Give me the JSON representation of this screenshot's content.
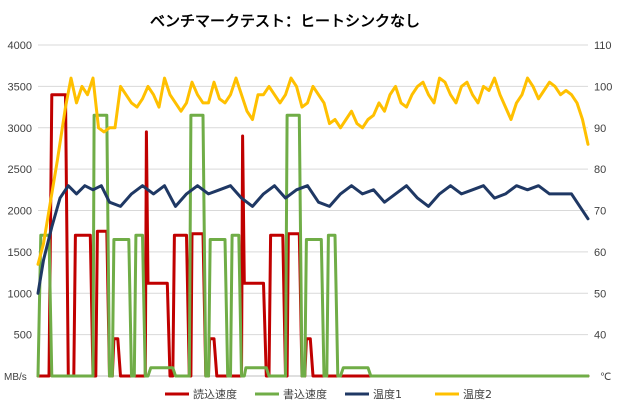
{
  "chart_data": {
    "type": "line",
    "title": "ベンチマークテスト：ヒートシンクなし",
    "y_left": {
      "unit": "MB/s",
      "min": 0,
      "max": 4000,
      "ticks": [
        "4000",
        "3500",
        "3000",
        "2500",
        "2000",
        "1500",
        "1000",
        "500"
      ]
    },
    "y_right": {
      "unit": "℃",
      "min": 30,
      "max": 110,
      "ticks": [
        "110",
        "100",
        "90",
        "80",
        "70",
        "60",
        "50",
        "40"
      ]
    },
    "grid": true,
    "legend_position": "bottom",
    "colors": {
      "read": "#c00000",
      "write": "#70ad47",
      "temp1": "#1f3864",
      "temp2": "#ffc000"
    },
    "series": [
      {
        "name": "読込速度",
        "axis": "left",
        "color": "#c00000",
        "step": true,
        "points": [
          [
            0,
            0
          ],
          [
            0.02,
            0
          ],
          [
            0.025,
            3400
          ],
          [
            0.05,
            3400
          ],
          [
            0.055,
            0
          ],
          [
            0.065,
            0
          ],
          [
            0.068,
            1700
          ],
          [
            0.095,
            1700
          ],
          [
            0.1,
            0
          ],
          [
            0.105,
            0
          ],
          [
            0.108,
            1750
          ],
          [
            0.125,
            1750
          ],
          [
            0.13,
            0
          ],
          [
            0.135,
            0
          ],
          [
            0.138,
            450
          ],
          [
            0.145,
            450
          ],
          [
            0.15,
            0
          ],
          [
            0.195,
            0
          ],
          [
            0.197,
            2950
          ],
          [
            0.2,
            1120
          ],
          [
            0.235,
            1120
          ],
          [
            0.24,
            0
          ],
          [
            0.245,
            0
          ],
          [
            0.248,
            1700
          ],
          [
            0.27,
            1700
          ],
          [
            0.275,
            0
          ],
          [
            0.278,
            0
          ],
          [
            0.28,
            1720
          ],
          [
            0.3,
            1720
          ],
          [
            0.305,
            0
          ],
          [
            0.31,
            0
          ],
          [
            0.312,
            450
          ],
          [
            0.32,
            450
          ],
          [
            0.325,
            0
          ],
          [
            0.37,
            0
          ],
          [
            0.372,
            2900
          ],
          [
            0.375,
            1120
          ],
          [
            0.41,
            1120
          ],
          [
            0.415,
            0
          ],
          [
            0.42,
            0
          ],
          [
            0.423,
            1700
          ],
          [
            0.445,
            1700
          ],
          [
            0.45,
            0
          ],
          [
            0.453,
            0
          ],
          [
            0.455,
            1720
          ],
          [
            0.475,
            1720
          ],
          [
            0.48,
            0
          ],
          [
            0.485,
            0
          ],
          [
            0.488,
            450
          ],
          [
            0.495,
            450
          ],
          [
            0.5,
            0
          ],
          [
            0.545,
            0
          ],
          [
            0.55,
            0
          ],
          [
            0.6,
            0
          ],
          [
            0.62,
            0
          ],
          [
            0.64,
            0
          ],
          [
            0.7,
            0
          ],
          [
            0.72,
            0
          ],
          [
            0.75,
            0
          ],
          [
            0.8,
            0
          ],
          [
            0.85,
            0
          ],
          [
            0.9,
            0
          ],
          [
            0.95,
            0
          ],
          [
            1,
            0
          ]
        ]
      },
      {
        "name": "書込速度",
        "axis": "left",
        "color": "#70ad47",
        "step": true,
        "points": [
          [
            0,
            0
          ],
          [
            0.005,
            1700
          ],
          [
            0.02,
            1700
          ],
          [
            0.025,
            0
          ],
          [
            0.1,
            0
          ],
          [
            0.102,
            3150
          ],
          [
            0.125,
            3150
          ],
          [
            0.13,
            0
          ],
          [
            0.135,
            0
          ],
          [
            0.138,
            1650
          ],
          [
            0.165,
            1650
          ],
          [
            0.17,
            0
          ],
          [
            0.175,
            0
          ],
          [
            0.178,
            1700
          ],
          [
            0.19,
            1700
          ],
          [
            0.195,
            0
          ],
          [
            0.2,
            0
          ],
          [
            0.205,
            100
          ],
          [
            0.245,
            100
          ],
          [
            0.25,
            0
          ],
          [
            0.275,
            0
          ],
          [
            0.278,
            3150
          ],
          [
            0.3,
            3150
          ],
          [
            0.305,
            0
          ],
          [
            0.31,
            0
          ],
          [
            0.313,
            1650
          ],
          [
            0.34,
            1650
          ],
          [
            0.345,
            0
          ],
          [
            0.35,
            0
          ],
          [
            0.353,
            1700
          ],
          [
            0.365,
            1700
          ],
          [
            0.37,
            0
          ],
          [
            0.375,
            0
          ],
          [
            0.378,
            100
          ],
          [
            0.415,
            100
          ],
          [
            0.42,
            0
          ],
          [
            0.45,
            0
          ],
          [
            0.453,
            3150
          ],
          [
            0.475,
            3150
          ],
          [
            0.48,
            0
          ],
          [
            0.485,
            0
          ],
          [
            0.488,
            1650
          ],
          [
            0.515,
            1650
          ],
          [
            0.52,
            0
          ],
          [
            0.525,
            0
          ],
          [
            0.528,
            1700
          ],
          [
            0.54,
            1700
          ],
          [
            0.545,
            0
          ],
          [
            0.55,
            0
          ],
          [
            0.555,
            100
          ],
          [
            0.6,
            100
          ],
          [
            0.605,
            0
          ],
          [
            0.7,
            0
          ],
          [
            0.75,
            0
          ],
          [
            0.8,
            0
          ],
          [
            0.85,
            0
          ],
          [
            0.9,
            0
          ],
          [
            0.95,
            0
          ],
          [
            1,
            0
          ]
        ]
      },
      {
        "name": "温度1",
        "axis": "right",
        "color": "#1f3864",
        "step": false,
        "points": [
          [
            0,
            50
          ],
          [
            0.01,
            58
          ],
          [
            0.025,
            66
          ],
          [
            0.04,
            73
          ],
          [
            0.055,
            76
          ],
          [
            0.07,
            74
          ],
          [
            0.085,
            76
          ],
          [
            0.1,
            75
          ],
          [
            0.115,
            76
          ],
          [
            0.13,
            72
          ],
          [
            0.15,
            71
          ],
          [
            0.17,
            74
          ],
          [
            0.19,
            76
          ],
          [
            0.21,
            74
          ],
          [
            0.23,
            76
          ],
          [
            0.25,
            71
          ],
          [
            0.27,
            74
          ],
          [
            0.29,
            76
          ],
          [
            0.31,
            74
          ],
          [
            0.33,
            75
          ],
          [
            0.35,
            76
          ],
          [
            0.37,
            73
          ],
          [
            0.39,
            71
          ],
          [
            0.41,
            74
          ],
          [
            0.43,
            76
          ],
          [
            0.45,
            73
          ],
          [
            0.47,
            75
          ],
          [
            0.49,
            76
          ],
          [
            0.51,
            72
          ],
          [
            0.53,
            71
          ],
          [
            0.55,
            74
          ],
          [
            0.57,
            76
          ],
          [
            0.59,
            74
          ],
          [
            0.61,
            75
          ],
          [
            0.63,
            72
          ],
          [
            0.65,
            74
          ],
          [
            0.67,
            76
          ],
          [
            0.69,
            73
          ],
          [
            0.71,
            71
          ],
          [
            0.73,
            74
          ],
          [
            0.75,
            76
          ],
          [
            0.77,
            74
          ],
          [
            0.79,
            75
          ],
          [
            0.81,
            76
          ],
          [
            0.83,
            73
          ],
          [
            0.85,
            74
          ],
          [
            0.87,
            76
          ],
          [
            0.89,
            75
          ],
          [
            0.91,
            76
          ],
          [
            0.93,
            74
          ],
          [
            0.95,
            74
          ],
          [
            0.97,
            74
          ],
          [
            0.985,
            71
          ],
          [
            1,
            68
          ]
        ]
      },
      {
        "name": "温度2",
        "axis": "right",
        "color": "#ffc000",
        "step": false,
        "points": [
          [
            0,
            57
          ],
          [
            0.01,
            62
          ],
          [
            0.02,
            70
          ],
          [
            0.035,
            82
          ],
          [
            0.05,
            95
          ],
          [
            0.06,
            102
          ],
          [
            0.07,
            96
          ],
          [
            0.08,
            100
          ],
          [
            0.09,
            98
          ],
          [
            0.1,
            102
          ],
          [
            0.11,
            90
          ],
          [
            0.12,
            89
          ],
          [
            0.13,
            90
          ],
          [
            0.14,
            90
          ],
          [
            0.15,
            100
          ],
          [
            0.16,
            98
          ],
          [
            0.17,
            96
          ],
          [
            0.18,
            95
          ],
          [
            0.19,
            97
          ],
          [
            0.2,
            100
          ],
          [
            0.21,
            98
          ],
          [
            0.22,
            95
          ],
          [
            0.23,
            102
          ],
          [
            0.24,
            98
          ],
          [
            0.25,
            96
          ],
          [
            0.26,
            94
          ],
          [
            0.27,
            96
          ],
          [
            0.28,
            101
          ],
          [
            0.29,
            98
          ],
          [
            0.3,
            96
          ],
          [
            0.31,
            96
          ],
          [
            0.32,
            101
          ],
          [
            0.33,
            97
          ],
          [
            0.34,
            96
          ],
          [
            0.35,
            98
          ],
          [
            0.36,
            102
          ],
          [
            0.37,
            98
          ],
          [
            0.38,
            94
          ],
          [
            0.39,
            92
          ],
          [
            0.4,
            98
          ],
          [
            0.41,
            98
          ],
          [
            0.42,
            100
          ],
          [
            0.43,
            98
          ],
          [
            0.44,
            96
          ],
          [
            0.45,
            98
          ],
          [
            0.46,
            102
          ],
          [
            0.47,
            100
          ],
          [
            0.48,
            95
          ],
          [
            0.49,
            96
          ],
          [
            0.5,
            100
          ],
          [
            0.51,
            98
          ],
          [
            0.52,
            96
          ],
          [
            0.53,
            91
          ],
          [
            0.54,
            92
          ],
          [
            0.55,
            90
          ],
          [
            0.56,
            92
          ],
          [
            0.57,
            94
          ],
          [
            0.58,
            91
          ],
          [
            0.59,
            90
          ],
          [
            0.6,
            92
          ],
          [
            0.61,
            93
          ],
          [
            0.62,
            96
          ],
          [
            0.63,
            94
          ],
          [
            0.64,
            98
          ],
          [
            0.65,
            100
          ],
          [
            0.66,
            96
          ],
          [
            0.67,
            95
          ],
          [
            0.68,
            98
          ],
          [
            0.69,
            100
          ],
          [
            0.7,
            101
          ],
          [
            0.71,
            98
          ],
          [
            0.72,
            96
          ],
          [
            0.73,
            102
          ],
          [
            0.74,
            101
          ],
          [
            0.75,
            98
          ],
          [
            0.76,
            96
          ],
          [
            0.77,
            100
          ],
          [
            0.78,
            101
          ],
          [
            0.79,
            98
          ],
          [
            0.8,
            96
          ],
          [
            0.81,
            100
          ],
          [
            0.82,
            99
          ],
          [
            0.83,
            102
          ],
          [
            0.84,
            98
          ],
          [
            0.85,
            95
          ],
          [
            0.86,
            92
          ],
          [
            0.87,
            96
          ],
          [
            0.88,
            98
          ],
          [
            0.89,
            102
          ],
          [
            0.9,
            100
          ],
          [
            0.91,
            97
          ],
          [
            0.92,
            99
          ],
          [
            0.93,
            101
          ],
          [
            0.94,
            100
          ],
          [
            0.95,
            98
          ],
          [
            0.96,
            99
          ],
          [
            0.97,
            98
          ],
          [
            0.98,
            96
          ],
          [
            0.99,
            92
          ],
          [
            1,
            86
          ]
        ]
      }
    ]
  }
}
